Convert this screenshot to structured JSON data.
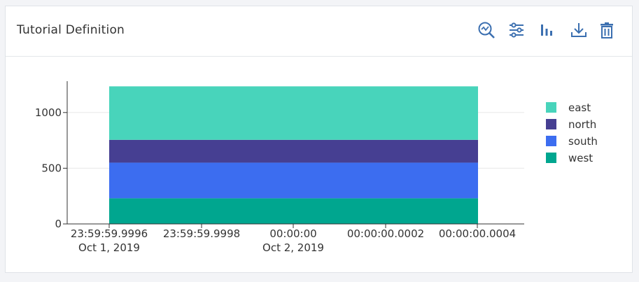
{
  "card": {
    "title": "Tutorial Definition",
    "toolbar": [
      {
        "icon": "zoom-chart-icon",
        "name": "zoom-button"
      },
      {
        "icon": "settings-sliders-icon",
        "name": "settings-button"
      },
      {
        "icon": "bar-chart-icon",
        "name": "chart-type-button"
      },
      {
        "icon": "download-icon",
        "name": "download-button"
      },
      {
        "icon": "trash-icon",
        "name": "delete-button"
      }
    ],
    "icon_color": "#3b6fb0"
  },
  "chart_data": {
    "type": "bar",
    "stacked": true,
    "title": "",
    "xlabel": "",
    "ylabel": "",
    "ylim": [
      0,
      1250
    ],
    "y_ticks": [
      "0",
      "500",
      "1000"
    ],
    "x_ticks": [
      {
        "line1": "23:59:59.9996",
        "line2": "Oct 1, 2019"
      },
      {
        "line1": "23:59:59.9998",
        "line2": ""
      },
      {
        "line1": "00:00:00",
        "line2": "Oct 2, 2019"
      },
      {
        "line1": "00:00:00.0002",
        "line2": ""
      },
      {
        "line1": "00:00:00.0004",
        "line2": ""
      }
    ],
    "categories": [
      "Oct 2, 2019 00:00:00"
    ],
    "series": [
      {
        "name": "west",
        "values": [
          230
        ],
        "color": "#00a68f"
      },
      {
        "name": "south",
        "values": [
          320
        ],
        "color": "#3c6df0"
      },
      {
        "name": "north",
        "values": [
          205
        ],
        "color": "#463f92"
      },
      {
        "name": "east",
        "values": [
          480
        ],
        "color": "#48d4bb"
      }
    ],
    "legend": [
      "east",
      "north",
      "south",
      "west"
    ],
    "legend_position": "right",
    "grid": true
  }
}
